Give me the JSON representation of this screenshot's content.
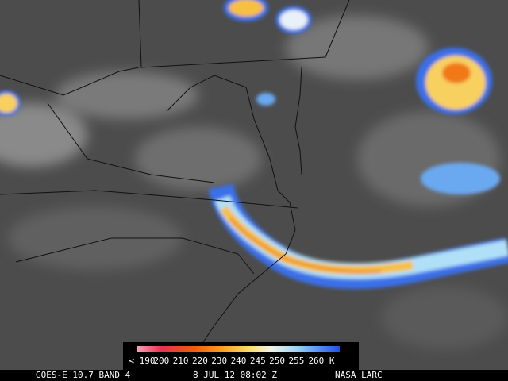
{
  "colorbar": {
    "labels": [
      "< 190",
      "200",
      "210",
      "220",
      "230",
      "240",
      "245",
      "250",
      "255",
      "260 K"
    ]
  },
  "footer": {
    "instrument": "GOES-E 10.7 BAND 4",
    "time": "8 JUL 12 08:02 Z",
    "source": "NASA LARC"
  }
}
